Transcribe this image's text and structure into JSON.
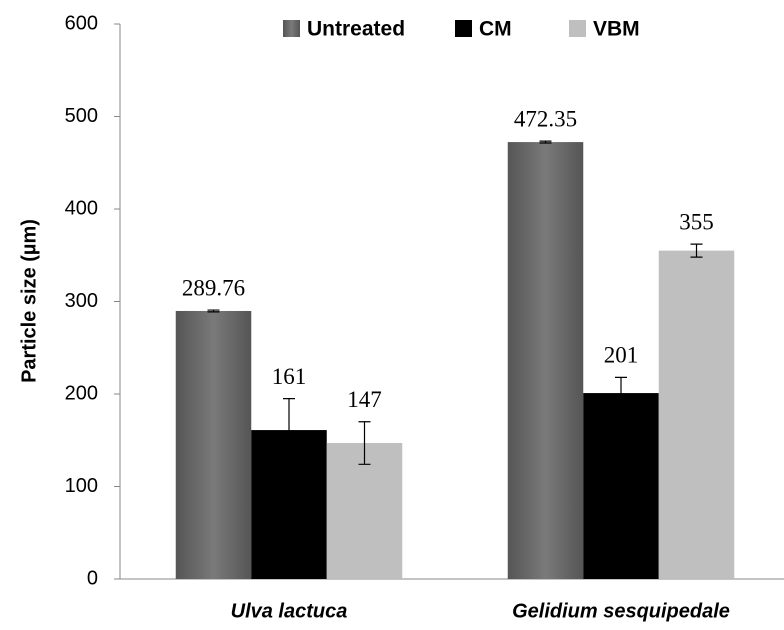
{
  "chart_data": {
    "type": "bar",
    "y_label": "Particle size (µm)",
    "categories": [
      "Ulva lactuca",
      "Gelidium sesquipedale"
    ],
    "series": [
      {
        "name": "Untreated",
        "color": "#6a6a6a",
        "values": [
          289.76,
          472.35
        ],
        "errors": [
          1,
          1
        ]
      },
      {
        "name": "CM",
        "color": "#000000",
        "values": [
          161,
          201
        ],
        "errors": [
          34,
          17
        ]
      },
      {
        "name": "VBM",
        "color": "#bfbfbf",
        "values": [
          147,
          355
        ],
        "errors": [
          23,
          7
        ]
      }
    ],
    "ylim": [
      0,
      600
    ],
    "yticks": [
      0,
      100,
      200,
      300,
      400,
      500,
      600
    ],
    "legend": "top",
    "grid": false
  }
}
